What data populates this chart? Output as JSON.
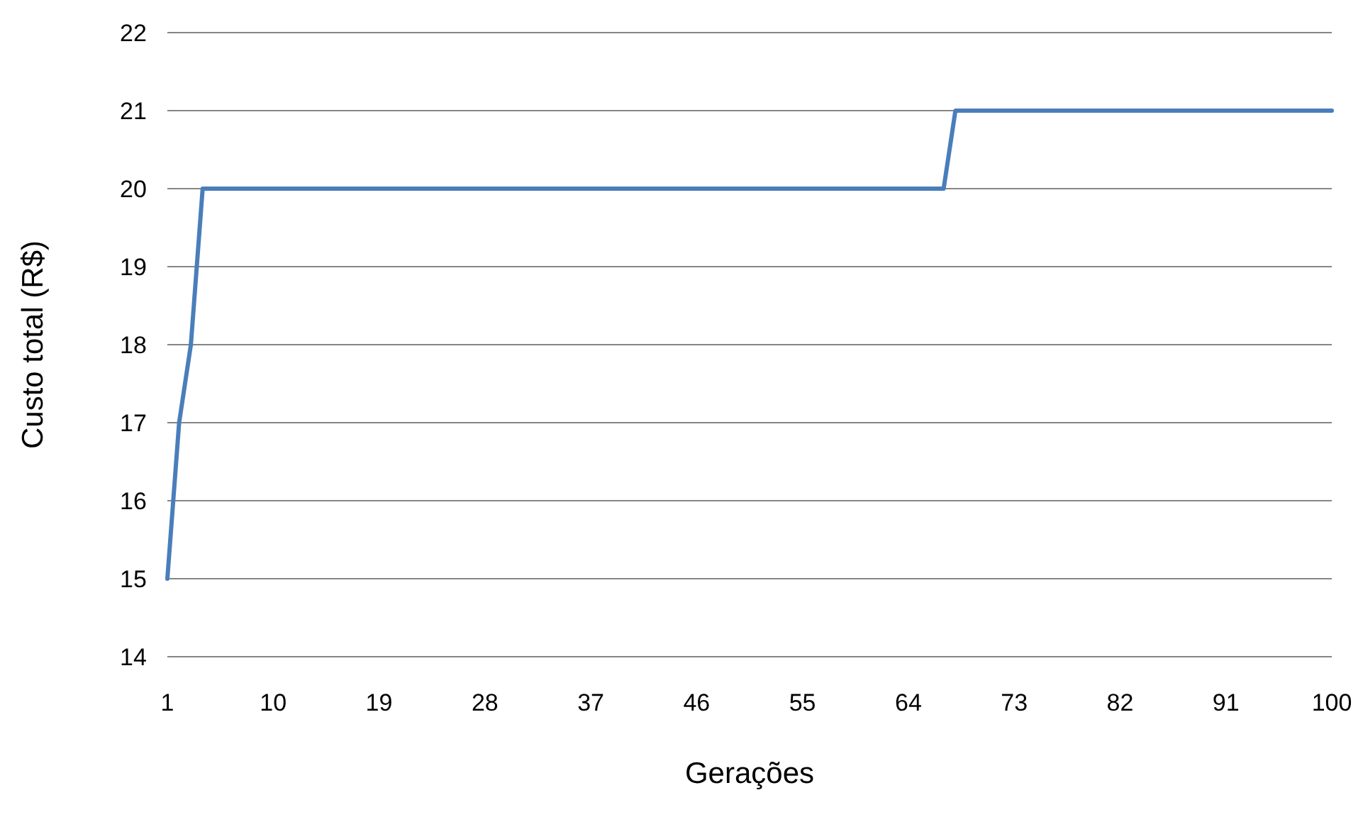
{
  "chart_data": {
    "type": "line",
    "xlabel": "Gerações",
    "ylabel": "Custo total (R$)",
    "series": [
      {
        "color": "#4a7ebb",
        "x": [
          1,
          2,
          3,
          4,
          67,
          68,
          100
        ],
        "values": [
          15,
          17,
          18,
          20,
          20,
          21,
          21
        ]
      }
    ],
    "xlim": [
      1,
      100
    ],
    "xticks": [
      1,
      10,
      19,
      28,
      37,
      46,
      55,
      64,
      73,
      82,
      91,
      100
    ],
    "ylim": [
      14,
      22
    ],
    "yticks": [
      14,
      15,
      16,
      17,
      18,
      19,
      20,
      21,
      22
    ],
    "grid": "y",
    "marker": "none",
    "line_style": "solid"
  }
}
